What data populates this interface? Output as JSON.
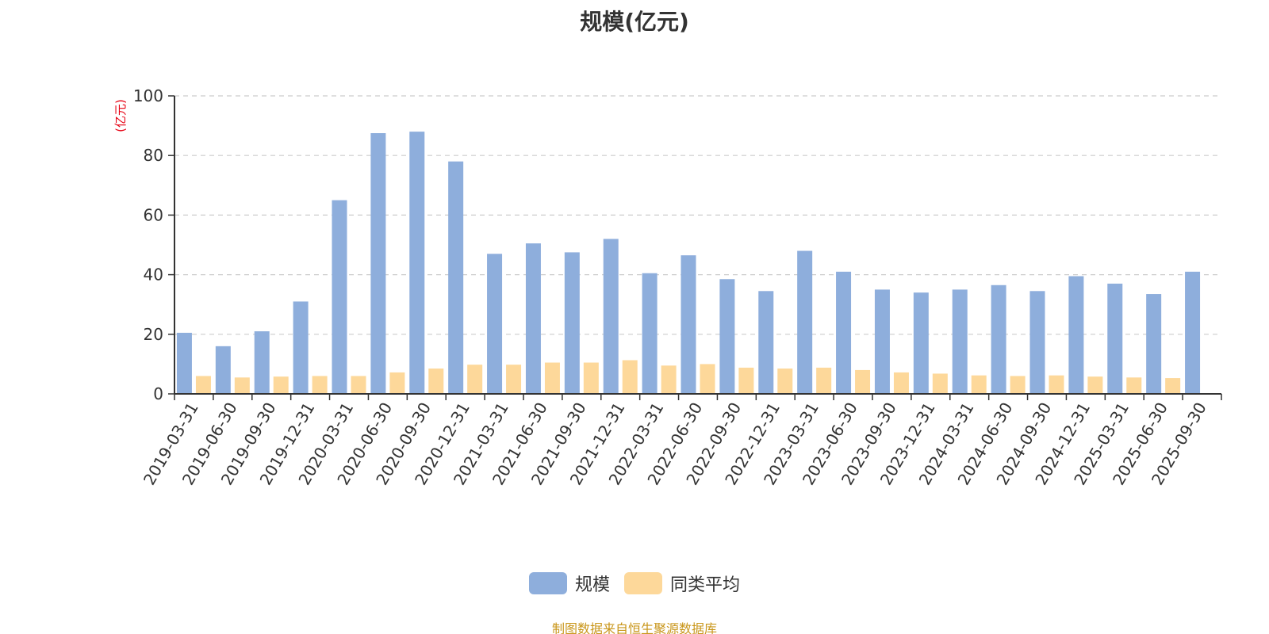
{
  "title": "规模(亿元)",
  "source_note": "制图数据来自恒生聚源数据库",
  "colors": {
    "series_1": "#8eaedc",
    "series_2": "#fdd89a",
    "axis": "#333333",
    "grid": "#cccccc",
    "unit_label": "#e60012",
    "source_note": "#c9961a"
  },
  "legend": {
    "items": [
      {
        "label": "规模",
        "color": "#8eaedc"
      },
      {
        "label": "同类平均",
        "color": "#fdd89a"
      }
    ],
    "position": "bottom-center"
  },
  "chart_data": {
    "type": "bar",
    "title": "规模(亿元)",
    "ylabel": "(亿元)",
    "xlabel": "",
    "ylim": [
      0,
      100
    ],
    "yticks": [
      0,
      20,
      40,
      60,
      80,
      100
    ],
    "grid": true,
    "categories": [
      "2019-03-31",
      "2019-06-30",
      "2019-09-30",
      "2019-12-31",
      "2020-03-31",
      "2020-06-30",
      "2020-09-30",
      "2020-12-31",
      "2021-03-31",
      "2021-06-30",
      "2021-09-30",
      "2021-12-31",
      "2022-03-31",
      "2022-06-30",
      "2022-09-30",
      "2022-12-31",
      "2023-03-31",
      "2023-06-30",
      "2023-09-30",
      "2023-12-31",
      "2024-03-31",
      "2024-06-30",
      "2024-09-30",
      "2024-12-31",
      "2025-03-31",
      "2025-06-30",
      "2025-09-30"
    ],
    "series": [
      {
        "name": "规模",
        "values": [
          20.5,
          16,
          21,
          31,
          65,
          87.5,
          88,
          78,
          47,
          50.5,
          47.5,
          52,
          40.5,
          46.5,
          38.5,
          34.5,
          48,
          41,
          35,
          34,
          35,
          36.5,
          34.5,
          39.5,
          37,
          33.5,
          41
        ]
      },
      {
        "name": "同类平均",
        "values": [
          6,
          5.5,
          5.8,
          6,
          6,
          7.2,
          8.5,
          9.8,
          9.8,
          10.5,
          10.5,
          11.3,
          9.5,
          10,
          8.8,
          8.5,
          8.8,
          8,
          7.2,
          6.8,
          6.2,
          6,
          6.2,
          5.8,
          5.5,
          5.3,
          null
        ]
      }
    ]
  }
}
